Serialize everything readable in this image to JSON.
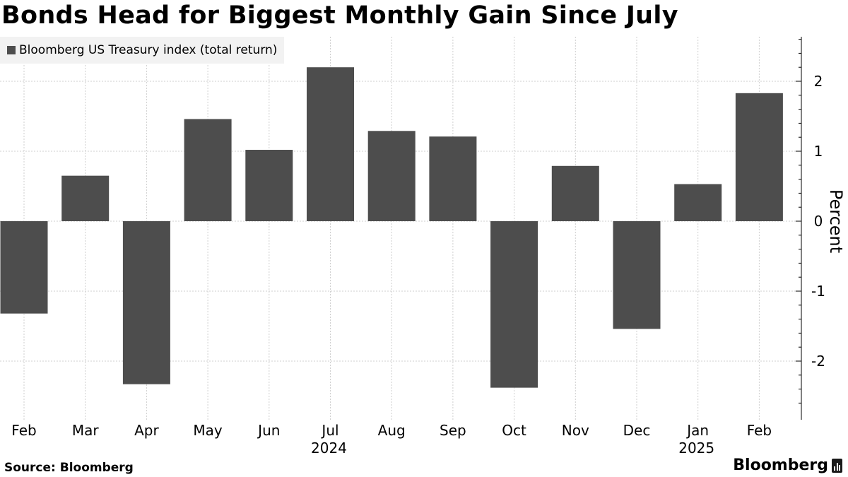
{
  "title": "Bonds Head for Biggest Monthly Gain Since July",
  "legend": {
    "label": "Bloomberg US Treasury index (total return)",
    "color": "#4d4d4d"
  },
  "footer": {
    "source": "Source: Bloomberg",
    "brand": "Bloomberg"
  },
  "chart_data": {
    "type": "bar",
    "title": "Bonds Head for Biggest Monthly Gain Since July",
    "categories": [
      "Feb",
      "Mar",
      "Apr",
      "May",
      "Jun",
      "Jul",
      "Aug",
      "Sep",
      "Oct",
      "Nov",
      "Dec",
      "Jan",
      "Feb"
    ],
    "year_labels": [
      {
        "category_index": 5,
        "label": "2024"
      },
      {
        "category_index": 11,
        "label": "2025"
      }
    ],
    "series": [
      {
        "name": "Bloomberg US Treasury index (total return)",
        "color": "#4d4d4d",
        "values": [
          -1.32,
          0.65,
          -2.33,
          1.46,
          1.02,
          2.2,
          1.29,
          1.21,
          -2.38,
          0.79,
          -1.54,
          0.53,
          1.83
        ]
      }
    ],
    "xlabel": "",
    "ylabel": "Percent",
    "ylim": [
      -2.8,
      2.6
    ],
    "yticks": [
      -2,
      -1,
      0,
      1,
      2
    ],
    "ytick_labels": [
      "-2",
      "-1",
      "0",
      "1",
      "2"
    ],
    "yaxis_side": "right",
    "grid": true,
    "legend_position": "top-left"
  }
}
